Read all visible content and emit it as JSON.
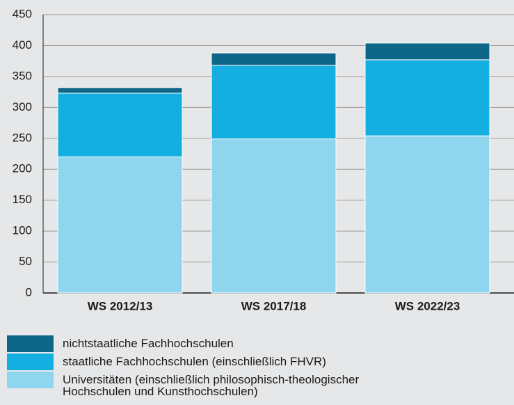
{
  "chart_data": {
    "type": "stacked_bar",
    "categories": [
      "WS 2012/13",
      "WS 2017/18",
      "WS 2022/23"
    ],
    "series": [
      {
        "name": "Universitäten (einschließlich philosophisch-theologischer Hochschulen und Kunsthochschulen)",
        "color": "#8fd5ee",
        "values": [
          220,
          249,
          254
        ]
      },
      {
        "name": "staatliche Fachhochschulen (einschließlich FHVR)",
        "color": "#14afe0",
        "values": [
          103,
          119,
          123
        ]
      },
      {
        "name": "nichtstaatliche Fachhochschulen",
        "color": "#0e6688",
        "values": [
          9,
          20,
          27
        ]
      }
    ],
    "ylim": [
      0,
      450
    ],
    "yticks": [
      0,
      50,
      100,
      150,
      200,
      250,
      300,
      350,
      400,
      450
    ],
    "grid": true
  }
}
